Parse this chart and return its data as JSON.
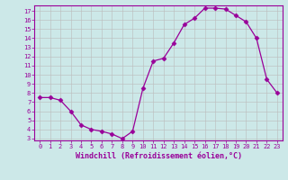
{
  "x": [
    0,
    1,
    2,
    3,
    4,
    5,
    6,
    7,
    8,
    9,
    10,
    11,
    12,
    13,
    14,
    15,
    16,
    17,
    18,
    19,
    20,
    21,
    22,
    23
  ],
  "y": [
    7.5,
    7.5,
    7.2,
    6.0,
    4.5,
    4.0,
    3.8,
    3.5,
    3.0,
    3.8,
    8.5,
    11.5,
    11.8,
    13.5,
    15.5,
    16.2,
    17.3,
    17.3,
    17.2,
    16.5,
    15.8,
    14.0,
    9.5,
    8.0
  ],
  "line_color": "#990099",
  "marker": "D",
  "marker_size": 2.5,
  "bg_color": "#cce8e8",
  "grid_color": "#bbbbbb",
  "xlabel": "Windchill (Refroidissement éolien,°C)",
  "ylim": [
    2.8,
    17.6
  ],
  "xlim": [
    -0.5,
    23.5
  ],
  "yticks": [
    3,
    4,
    5,
    6,
    7,
    8,
    9,
    10,
    11,
    12,
    13,
    14,
    15,
    16,
    17
  ],
  "xticks": [
    0,
    1,
    2,
    3,
    4,
    5,
    6,
    7,
    8,
    9,
    10,
    11,
    12,
    13,
    14,
    15,
    16,
    17,
    18,
    19,
    20,
    21,
    22,
    23
  ],
  "tick_color": "#990099",
  "label_color": "#990099",
  "spine_color": "#990099",
  "axis_bg": "#cce8e8"
}
